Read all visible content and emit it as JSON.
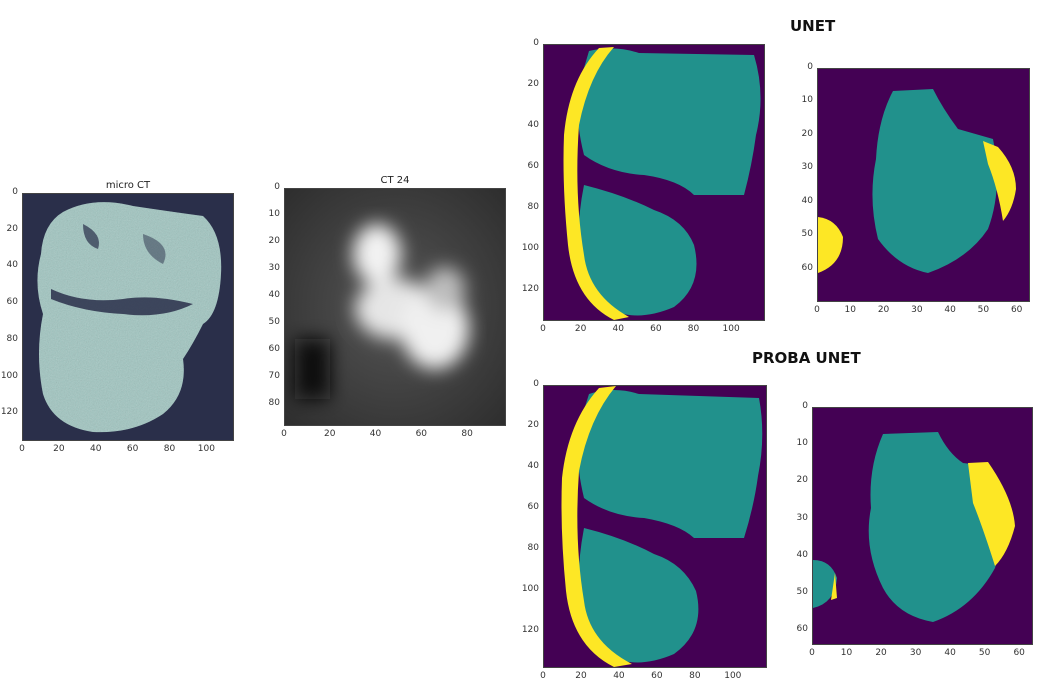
{
  "section_titles": {
    "unet": "UNET",
    "proba_unet": "PROBA UNET"
  },
  "panels": [
    {
      "id": "microct",
      "title": "micro CT",
      "xticks": [
        "0",
        "20",
        "40",
        "60",
        "80",
        "100"
      ],
      "yticks": [
        "0",
        "20",
        "40",
        "60",
        "80",
        "100",
        "120"
      ]
    },
    {
      "id": "ct24",
      "title": "CT 24",
      "xticks": [
        "0",
        "20",
        "40",
        "60",
        "80"
      ],
      "yticks": [
        "0",
        "10",
        "20",
        "30",
        "40",
        "50",
        "60",
        "70",
        "80"
      ]
    },
    {
      "id": "unet_big",
      "title": "",
      "xticks": [
        "0",
        "20",
        "40",
        "60",
        "80",
        "100"
      ],
      "yticks": [
        "0",
        "20",
        "40",
        "60",
        "80",
        "100",
        "120"
      ]
    },
    {
      "id": "unet_small",
      "title": "",
      "xticks": [
        "0",
        "10",
        "20",
        "30",
        "40",
        "50",
        "60"
      ],
      "yticks": [
        "0",
        "10",
        "20",
        "30",
        "40",
        "50",
        "60"
      ]
    },
    {
      "id": "proba_big",
      "title": "",
      "xticks": [
        "0",
        "20",
        "40",
        "60",
        "80",
        "100"
      ],
      "yticks": [
        "0",
        "20",
        "40",
        "60",
        "80",
        "100",
        "120"
      ]
    },
    {
      "id": "proba_small",
      "title": "",
      "xticks": [
        "0",
        "10",
        "20",
        "30",
        "40",
        "50",
        "60"
      ],
      "yticks": [
        "0",
        "10",
        "20",
        "30",
        "40",
        "50",
        "60"
      ]
    }
  ],
  "colors": {
    "seg_background": "#440154",
    "seg_class1": "#21918c",
    "seg_class2": "#fde725",
    "ct_dark": "#2a2f4a",
    "ct_tissue": "#9fc5c0"
  }
}
